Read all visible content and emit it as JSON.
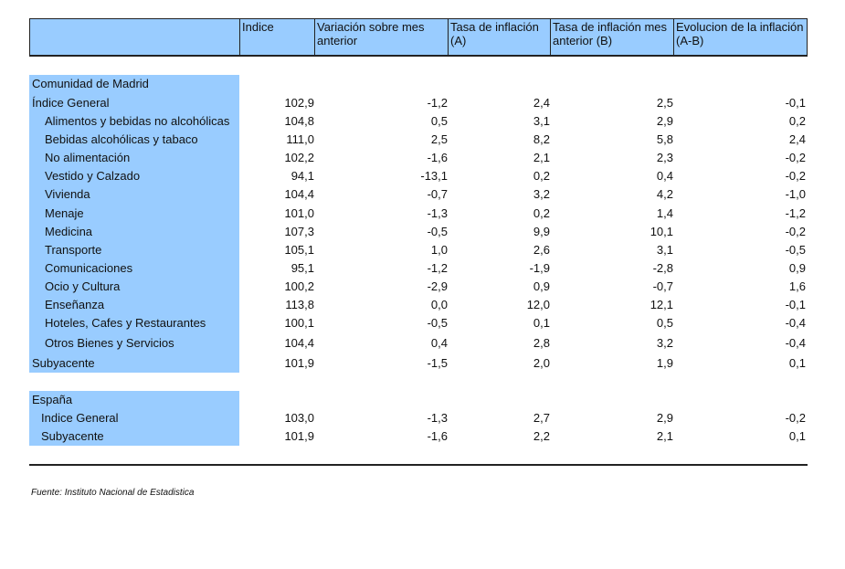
{
  "header": {
    "col1": "",
    "col2": "Indice",
    "col3": "Variación sobre mes anterior",
    "col4": "Tasa de inflación (A)",
    "col5": "Tasa de inflación mes anterior (B)",
    "col6": "Evolucion de la inflación (A-B)"
  },
  "sections": {
    "madrid": "Comunidad de Madrid",
    "spain": "España"
  },
  "rows": [
    {
      "label": "Índice General",
      "v": [
        "102,9",
        "-1,2",
        "2,4",
        "2,5",
        "-0,1"
      ]
    },
    {
      "label": "Alimentos y bebidas no alcohólicas",
      "v": [
        "104,8",
        "0,5",
        "3,1",
        "2,9",
        "0,2"
      ]
    },
    {
      "label": "Bebidas alcohólicas y tabaco",
      "v": [
        "111,0",
        "2,5",
        "8,2",
        "5,8",
        "2,4"
      ]
    },
    {
      "label": "No alimentación",
      "v": [
        "102,2",
        "-1,6",
        "2,1",
        "2,3",
        "-0,2"
      ]
    },
    {
      "label": "Vestido y Calzado",
      "v": [
        "94,1",
        "-13,1",
        "0,2",
        "0,4",
        "-0,2"
      ]
    },
    {
      "label": "Vivienda",
      "v": [
        "104,4",
        "-0,7",
        "3,2",
        "4,2",
        "-1,0"
      ]
    },
    {
      "label": "Menaje",
      "v": [
        "101,0",
        "-1,3",
        "0,2",
        "1,4",
        "-1,2"
      ]
    },
    {
      "label": "Medicina",
      "v": [
        "107,3",
        "-0,5",
        "9,9",
        "10,1",
        "-0,2"
      ]
    },
    {
      "label": "Transporte",
      "v": [
        "105,1",
        "1,0",
        "2,6",
        "3,1",
        "-0,5"
      ]
    },
    {
      "label": "Comunicaciones",
      "v": [
        "95,1",
        "-1,2",
        "-1,9",
        "-2,8",
        "0,9"
      ]
    },
    {
      "label": "Ocio y Cultura",
      "v": [
        "100,2",
        "-2,9",
        "0,9",
        "-0,7",
        "1,6"
      ]
    },
    {
      "label": "Enseñanza",
      "v": [
        "113,8",
        "0,0",
        "12,0",
        "12,1",
        "-0,1"
      ]
    },
    {
      "label": "Hoteles, Cafes y Restaurantes",
      "v": [
        "100,1",
        "-0,5",
        "0,1",
        "0,5",
        "-0,4"
      ]
    },
    {
      "label": "Otros Bienes y Servicios",
      "v": [
        "104,4",
        "0,4",
        "2,8",
        "3,2",
        "-0,4"
      ]
    },
    {
      "label": "Subyacente",
      "v": [
        "101,9",
        "-1,5",
        "2,0",
        "1,9",
        "0,1"
      ]
    },
    {
      "label": "Indice General",
      "v": [
        "103,0",
        "-1,3",
        "2,7",
        "2,9",
        "-0,2"
      ]
    },
    {
      "label": "Subyacente",
      "v": [
        "101,9",
        "-1,6",
        "2,2",
        "2,1",
        "0,1"
      ]
    }
  ],
  "source": "Fuente: Instituto Nacional de Estadistica"
}
